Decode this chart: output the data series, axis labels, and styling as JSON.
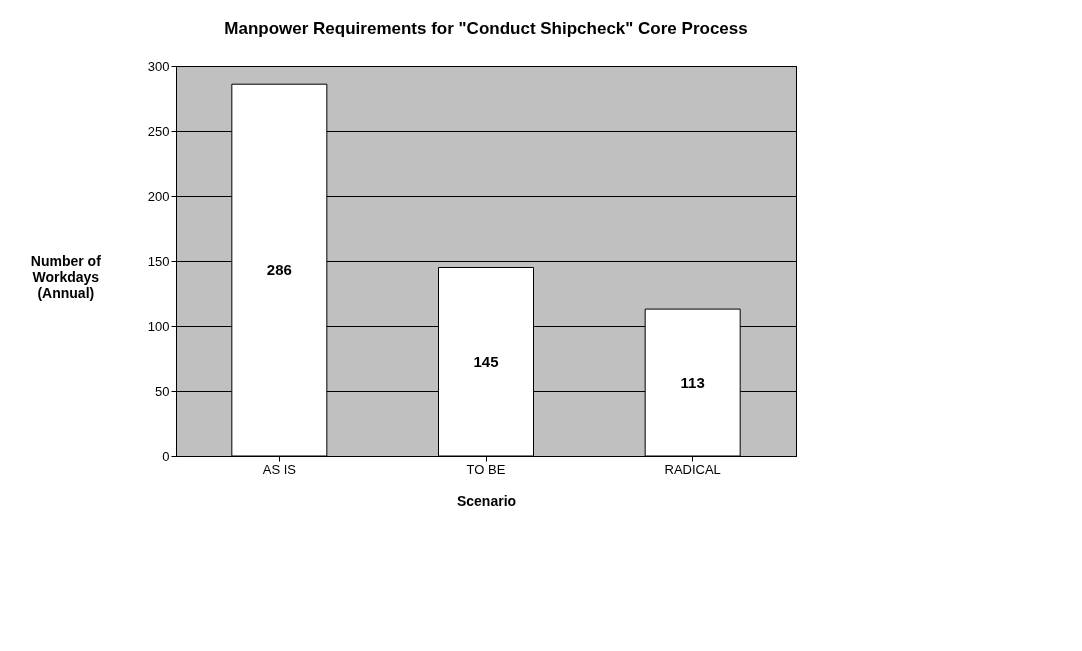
{
  "chart_data": {
    "type": "bar",
    "title": "Manpower Requirements for \"Conduct Shipcheck\" Core Process",
    "xlabel": "Scenario",
    "ylabel": "Number of Workdays (Annual)",
    "categories": [
      "AS IS",
      "TO BE",
      "RADICAL"
    ],
    "values": [
      286,
      145,
      113
    ],
    "color": "#ffffff",
    "ylim": [
      0,
      300
    ],
    "yticks": [
      0,
      50,
      100,
      150,
      200,
      250,
      300
    ],
    "grid": "y",
    "data_labels": true
  }
}
